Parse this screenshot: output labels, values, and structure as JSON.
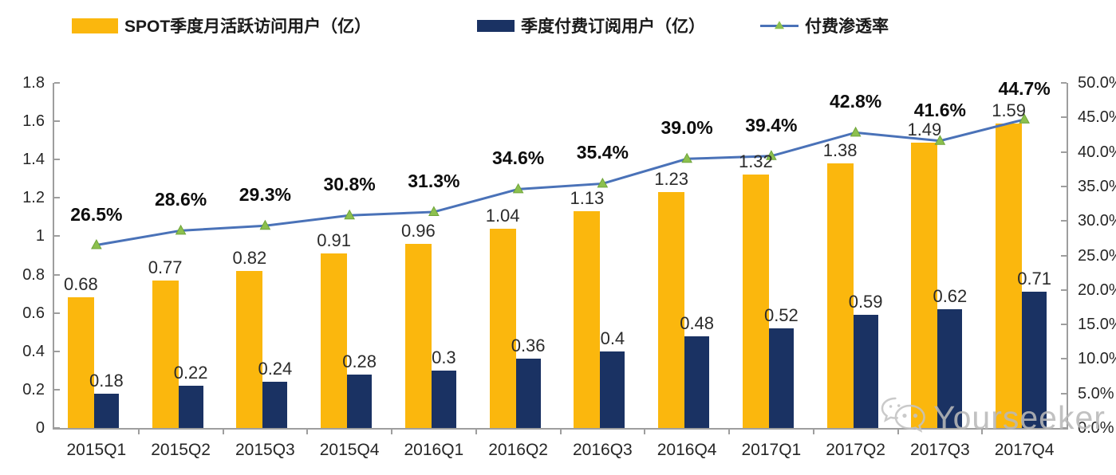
{
  "legend": {
    "items": [
      {
        "label": "SPOT季度月活跃访问用户（亿）",
        "swatch": "yellow-bar-swatch"
      },
      {
        "label": "季度付费订阅用户（亿）",
        "swatch": "navy-bar-swatch"
      },
      {
        "label": "付费渗透率",
        "swatch": "line-marker-swatch"
      }
    ]
  },
  "colors": {
    "mau_bar": "#FBB70D",
    "sub_bar": "#1A3263",
    "line": "#4A72B8",
    "marker_fill": "#8CC04E",
    "marker_edge": "#6FA43A",
    "axis": "#9e9e9e",
    "value_label": "#2b2b2b",
    "pct_label": "#0d0d0d",
    "watermark": "#b9b9b9"
  },
  "icons": {
    "watermark": "wechat-icon",
    "legend_line_marker": "triangle-marker-icon"
  },
  "chart_data": {
    "type": "bar",
    "subtype": "combo-bar-line-dual-axis",
    "categories": [
      "2015Q1",
      "2015Q2",
      "2015Q3",
      "2015Q4",
      "2016Q1",
      "2016Q2",
      "2016Q3",
      "2016Q4",
      "2017Q1",
      "2017Q2",
      "2017Q3",
      "2017Q4"
    ],
    "series": [
      {
        "name": "SPOT季度月活跃访问用户（亿）",
        "type": "bar",
        "axis": "left",
        "values": [
          0.68,
          0.77,
          0.82,
          0.91,
          0.96,
          1.04,
          1.13,
          1.23,
          1.32,
          1.38,
          1.49,
          1.59
        ],
        "labels": [
          "0.68",
          "0.77",
          "0.82",
          "0.91",
          "0.96",
          "1.04",
          "1.13",
          "1.23",
          "1.32",
          "1.38",
          "1.49",
          "1.59"
        ]
      },
      {
        "name": "季度付费订阅用户（亿）",
        "type": "bar",
        "axis": "left",
        "values": [
          0.18,
          0.22,
          0.24,
          0.28,
          0.3,
          0.36,
          0.4,
          0.48,
          0.52,
          0.59,
          0.62,
          0.71
        ],
        "labels": [
          "0.18",
          "0.22",
          "0.24",
          "0.28",
          "0.3",
          "0.36",
          "0.4",
          "0.48",
          "0.52",
          "0.59",
          "0.62",
          "0.71"
        ]
      },
      {
        "name": "付费渗透率",
        "type": "line",
        "axis": "right",
        "values": [
          26.5,
          28.6,
          29.3,
          30.8,
          31.3,
          34.6,
          35.4,
          39.0,
          39.4,
          42.8,
          41.6,
          44.7
        ],
        "labels": [
          "26.5%",
          "28.6%",
          "29.3%",
          "30.8%",
          "31.3%",
          "34.6%",
          "35.4%",
          "39.0%",
          "39.4%",
          "42.8%",
          "41.6%",
          "44.7%"
        ]
      }
    ],
    "left_axis": {
      "min": 0,
      "max": 1.8,
      "ticks": [
        "0",
        "0.2",
        "0.4",
        "0.6",
        "0.8",
        "1",
        "1.2",
        "1.4",
        "1.6",
        "1.8"
      ]
    },
    "right_axis": {
      "min": 0,
      "max": 50,
      "ticks": [
        "0.0%",
        "5.0%",
        "10.0%",
        "15.0%",
        "20.0%",
        "25.0%",
        "30.0%",
        "35.0%",
        "40.0%",
        "45.0%",
        "50.0%"
      ]
    },
    "grid": false,
    "legend_position": "top"
  },
  "watermark": {
    "text": "Yourseeker"
  }
}
